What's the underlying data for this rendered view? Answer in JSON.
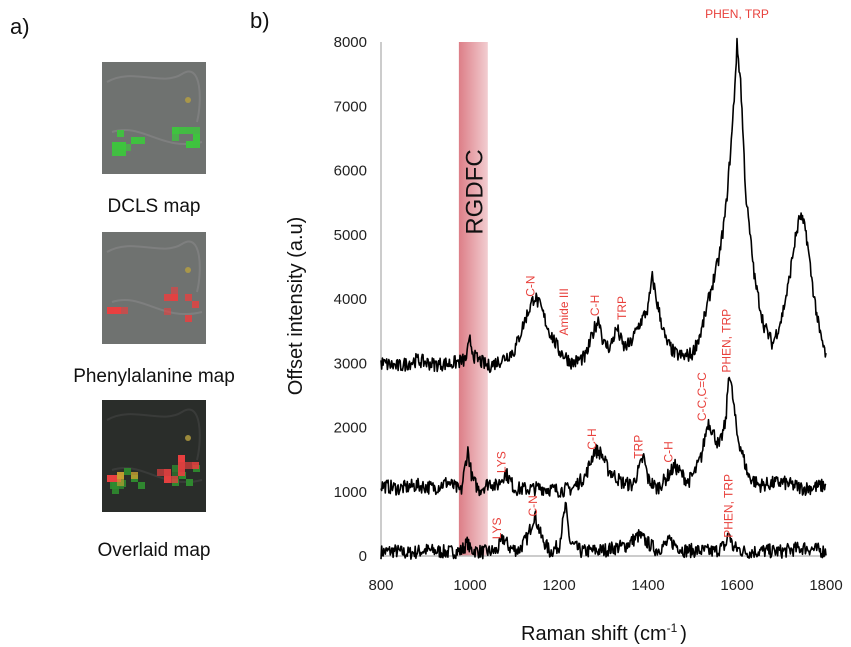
{
  "panel_a": {
    "label": "a)",
    "maps": [
      {
        "caption": "DCLS map",
        "overlay": "green"
      },
      {
        "caption": "Phenylalanine map",
        "overlay": "red"
      },
      {
        "caption": "Overlaid map",
        "overlay": "both"
      }
    ]
  },
  "panel_b": {
    "label": "b)"
  },
  "chart_data": {
    "type": "line",
    "xlabel": "Raman shift (cm",
    "xlabel_sup": "-1",
    "xlabel_tail": ")",
    "ylabel": "Offset intensity (a.u)",
    "xlim": [
      800,
      1800
    ],
    "ylim": [
      0,
      8000
    ],
    "xticks": [
      800,
      1000,
      1200,
      1400,
      1600,
      1800
    ],
    "yticks": [
      0,
      1000,
      2000,
      3000,
      4000,
      5000,
      6000,
      7000,
      8000
    ],
    "highlight_band": {
      "label": "RGDFC",
      "x0": 975,
      "x1": 1040,
      "color": "#d9707a"
    },
    "line_color": "#000000",
    "annotation_color": "#e8413c",
    "series": [
      {
        "points": [
          [
            800,
            60
          ],
          [
            830,
            80
          ],
          [
            860,
            40
          ],
          [
            900,
            90
          ],
          [
            950,
            60
          ],
          [
            980,
            80
          ],
          [
            995,
            210
          ],
          [
            1000,
            100
          ],
          [
            1030,
            60
          ],
          [
            1060,
            80
          ],
          [
            1075,
            280
          ],
          [
            1090,
            120
          ],
          [
            1110,
            90
          ],
          [
            1130,
            300
          ],
          [
            1145,
            650
          ],
          [
            1160,
            300
          ],
          [
            1180,
            60
          ],
          [
            1200,
            160
          ],
          [
            1215,
            780
          ],
          [
            1225,
            200
          ],
          [
            1250,
            70
          ],
          [
            1300,
            90
          ],
          [
            1350,
            160
          ],
          [
            1380,
            320
          ],
          [
            1400,
            200
          ],
          [
            1420,
            90
          ],
          [
            1450,
            230
          ],
          [
            1480,
            90
          ],
          [
            1520,
            80
          ],
          [
            1550,
            70
          ],
          [
            1575,
            170
          ],
          [
            1582,
            380
          ],
          [
            1590,
            140
          ],
          [
            1620,
            60
          ],
          [
            1660,
            80
          ],
          [
            1700,
            70
          ],
          [
            1750,
            130
          ],
          [
            1800,
            70
          ]
        ],
        "annotations": [
          {
            "text": "LYS",
            "x": 1070,
            "y": 430,
            "rotate": -90
          },
          {
            "text": "C-N",
            "x": 1150,
            "y": 780,
            "rotate": -90
          },
          {
            "text": "PHEN, TRP",
            "x": 1590,
            "y": 780,
            "rotate": -90
          }
        ]
      },
      {
        "points": [
          [
            800,
            1100
          ],
          [
            840,
            1050
          ],
          [
            880,
            1100
          ],
          [
            920,
            1060
          ],
          [
            950,
            1150
          ],
          [
            980,
            1000
          ],
          [
            995,
            1650
          ],
          [
            1005,
            1200
          ],
          [
            1020,
            1030
          ],
          [
            1045,
            1150
          ],
          [
            1060,
            1080
          ],
          [
            1080,
            1300
          ],
          [
            1100,
            1050
          ],
          [
            1130,
            1040
          ],
          [
            1160,
            1060
          ],
          [
            1200,
            1020
          ],
          [
            1230,
            1050
          ],
          [
            1260,
            1250
          ],
          [
            1280,
            1650
          ],
          [
            1295,
            1600
          ],
          [
            1310,
            1350
          ],
          [
            1340,
            1150
          ],
          [
            1365,
            1100
          ],
          [
            1380,
            1350
          ],
          [
            1390,
            1550
          ],
          [
            1400,
            1200
          ],
          [
            1420,
            1050
          ],
          [
            1440,
            1200
          ],
          [
            1460,
            1400
          ],
          [
            1475,
            1280
          ],
          [
            1490,
            1150
          ],
          [
            1505,
            1300
          ],
          [
            1520,
            1550
          ],
          [
            1535,
            2100
          ],
          [
            1545,
            1950
          ],
          [
            1560,
            1700
          ],
          [
            1575,
            2100
          ],
          [
            1582,
            2900
          ],
          [
            1590,
            2500
          ],
          [
            1600,
            1900
          ],
          [
            1610,
            1650
          ],
          [
            1625,
            1250
          ],
          [
            1650,
            1100
          ],
          [
            1700,
            1150
          ],
          [
            1750,
            1050
          ],
          [
            1800,
            1100
          ]
        ],
        "annotations": [
          {
            "text": "LYS",
            "x": 1080,
            "y": 1460,
            "rotate": -90
          },
          {
            "text": "C-H",
            "x": 1283,
            "y": 1820,
            "rotate": -90
          },
          {
            "text": "TRP",
            "x": 1388,
            "y": 1700,
            "rotate": -90
          },
          {
            "text": "C-H",
            "x": 1455,
            "y": 1620,
            "rotate": -90
          },
          {
            "text": "C-C,C=C",
            "x": 1530,
            "y": 2480,
            "rotate": -90
          },
          {
            "text": "PHEN, TRP",
            "x": 1585,
            "y": 3350,
            "rotate": -90
          }
        ]
      },
      {
        "points": [
          [
            800,
            3000
          ],
          [
            840,
            2950
          ],
          [
            880,
            3050
          ],
          [
            920,
            2980
          ],
          [
            960,
            3000
          ],
          [
            990,
            3050
          ],
          [
            1000,
            3350
          ],
          [
            1010,
            3100
          ],
          [
            1040,
            2950
          ],
          [
            1070,
            3050
          ],
          [
            1100,
            3200
          ],
          [
            1125,
            3700
          ],
          [
            1145,
            4050
          ],
          [
            1160,
            3850
          ],
          [
            1175,
            3550
          ],
          [
            1200,
            3200
          ],
          [
            1230,
            3000
          ],
          [
            1260,
            3100
          ],
          [
            1280,
            3550
          ],
          [
            1290,
            3700
          ],
          [
            1300,
            3300
          ],
          [
            1315,
            3250
          ],
          [
            1330,
            3550
          ],
          [
            1345,
            3250
          ],
          [
            1360,
            3300
          ],
          [
            1380,
            3600
          ],
          [
            1400,
            3850
          ],
          [
            1410,
            4350
          ],
          [
            1420,
            3950
          ],
          [
            1440,
            3350
          ],
          [
            1460,
            3150
          ],
          [
            1480,
            3100
          ],
          [
            1500,
            3150
          ],
          [
            1520,
            3500
          ],
          [
            1540,
            4100
          ],
          [
            1560,
            4650
          ],
          [
            1575,
            5400
          ],
          [
            1590,
            6700
          ],
          [
            1600,
            7950
          ],
          [
            1608,
            7400
          ],
          [
            1620,
            5600
          ],
          [
            1640,
            4300
          ],
          [
            1660,
            3600
          ],
          [
            1680,
            3300
          ],
          [
            1700,
            3700
          ],
          [
            1715,
            4200
          ],
          [
            1730,
            4900
          ],
          [
            1742,
            5300
          ],
          [
            1755,
            5050
          ],
          [
            1770,
            4200
          ],
          [
            1785,
            3500
          ],
          [
            1800,
            3100
          ]
        ],
        "annotations": [
          {
            "text": "C-N",
            "x": 1145,
            "y": 4200,
            "rotate": -90
          },
          {
            "text": "Amide III",
            "x": 1220,
            "y": 3800,
            "rotate": -90
          },
          {
            "text": "C-H",
            "x": 1290,
            "y": 3900,
            "rotate": -90
          },
          {
            "text": "TRP",
            "x": 1350,
            "y": 3860,
            "rotate": -90
          },
          {
            "text": "PHEN, TRP",
            "x": 1600,
            "y": 8370,
            "rotate": 0
          }
        ]
      }
    ]
  }
}
